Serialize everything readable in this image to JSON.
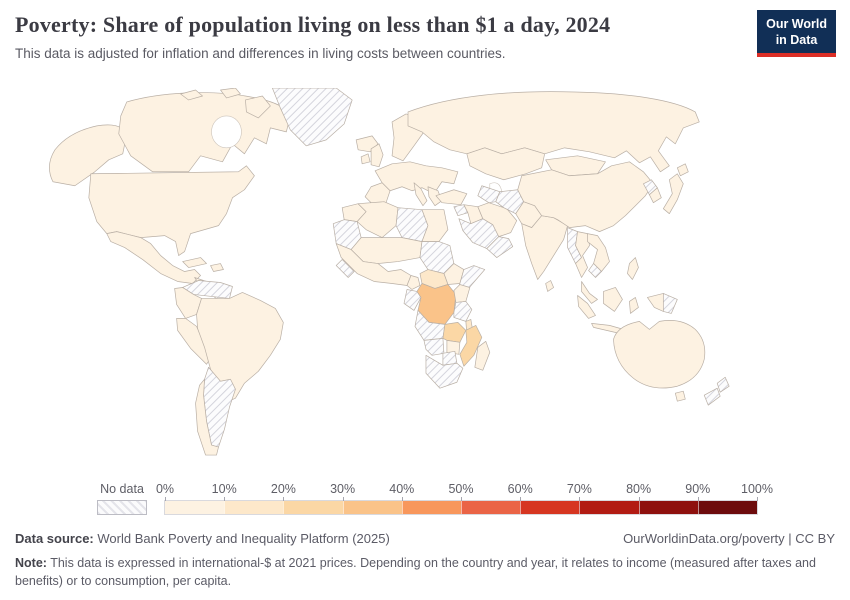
{
  "header": {
    "title": "Poverty: Share of population living on less than $1 a day, 2024",
    "subtitle": "This data is adjusted for inflation and differences in living costs between countries."
  },
  "logo": {
    "line1": "Our World",
    "line2": "in Data",
    "bg_color": "#112f56",
    "accent_color": "#dc2e26"
  },
  "legend": {
    "no_data_label": "No data",
    "ticks": [
      "0%",
      "10%",
      "20%",
      "30%",
      "40%",
      "50%",
      "60%",
      "70%",
      "80%",
      "90%",
      "100%"
    ],
    "colors": [
      "#fdf2e2",
      "#fde8ca",
      "#fbd7a5",
      "#fac389",
      "#f8975c",
      "#ea6446",
      "#d63621",
      "#b21b13",
      "#8e110e",
      "#6d0c0d"
    ]
  },
  "footer": {
    "source_label": "Data source:",
    "source": "World Bank Poverty and Inequality Platform (2025)",
    "link": "OurWorldinData.org/poverty | CC BY",
    "note_label": "Note:",
    "note": "This data is expressed in international-$ at 2021 prices. Depending on the country and year, it relates to income (measured after taxes and benefits) or to consumption, per capita."
  },
  "chart_data": {
    "type": "choropleth",
    "title": "Poverty: Share of population living on less than $1 a day",
    "year": "2024",
    "unit": "share of population (%)",
    "bin_labels": [
      "0-10%",
      "10-20%",
      "20-30%",
      "30-40%",
      "40-50%",
      "50-60%",
      "60-70%",
      "70-80%",
      "80-90%",
      "90-100%"
    ],
    "no_data_key": "no-data",
    "regions": {
      "canada": 0,
      "usa": 0,
      "greenland": "no-data",
      "iceland": 0,
      "arctic-islands": 0,
      "mexico": 0,
      "guatemala-honduras": 0,
      "nicaragua-panama": "no-data",
      "cuba": 0,
      "hispaniola": 0,
      "venezuela": "no-data",
      "colombia": 0,
      "peru-ecuador": 0,
      "brazil": 0,
      "chile": 0,
      "argentina": "no-data",
      "uk": 0,
      "ireland": 0,
      "scandinavia": 0,
      "europe": 0,
      "iberia": 0,
      "italy": 0,
      "balkans": 0,
      "russia": 0,
      "central-asia": 0,
      "turkmenistan": "no-data",
      "turkey": 0,
      "syria": "no-data",
      "iraq": 0,
      "iran": 0,
      "saudi-arabia": "no-data",
      "yemen-oman": "no-data",
      "afghanistan": "no-data",
      "pakistan": 0,
      "india": 0,
      "sri-lanka": 0,
      "mongolia": 0,
      "china": 0,
      "north-korea": "no-data",
      "south-korea": 0,
      "japan": 0,
      "myanmar": "no-data",
      "thailand": 0,
      "laos-vietnam": 0,
      "cambodia": "no-data",
      "malaysia": 0,
      "indonesia": 0,
      "philippines": 0,
      "papua-new-guinea": "no-data",
      "australia": 0,
      "new-zealand": "no-data",
      "morocco": 0,
      "western-sahara-mauritania": "no-data",
      "algeria": 0,
      "libya": "no-data",
      "egypt": 0,
      "sahel": 0,
      "sudan": "no-data",
      "west-africa": 0,
      "guinea-sierra-leone": "no-data",
      "cameroon": 0,
      "central-african-republic": 1,
      "ethiopia": 0,
      "somalia": "no-data",
      "gabon-congo": "no-data",
      "democratic-republic-of-congo": 3,
      "uganda-kenya": 0,
      "tanzania": "no-data",
      "angola": "no-data",
      "zambia": 2,
      "malawi": 1,
      "mozambique": 2,
      "zimbabwe": 0,
      "namibia": "no-data",
      "botswana": "no-data",
      "south-africa": "no-data",
      "madagascar": 0
    }
  }
}
